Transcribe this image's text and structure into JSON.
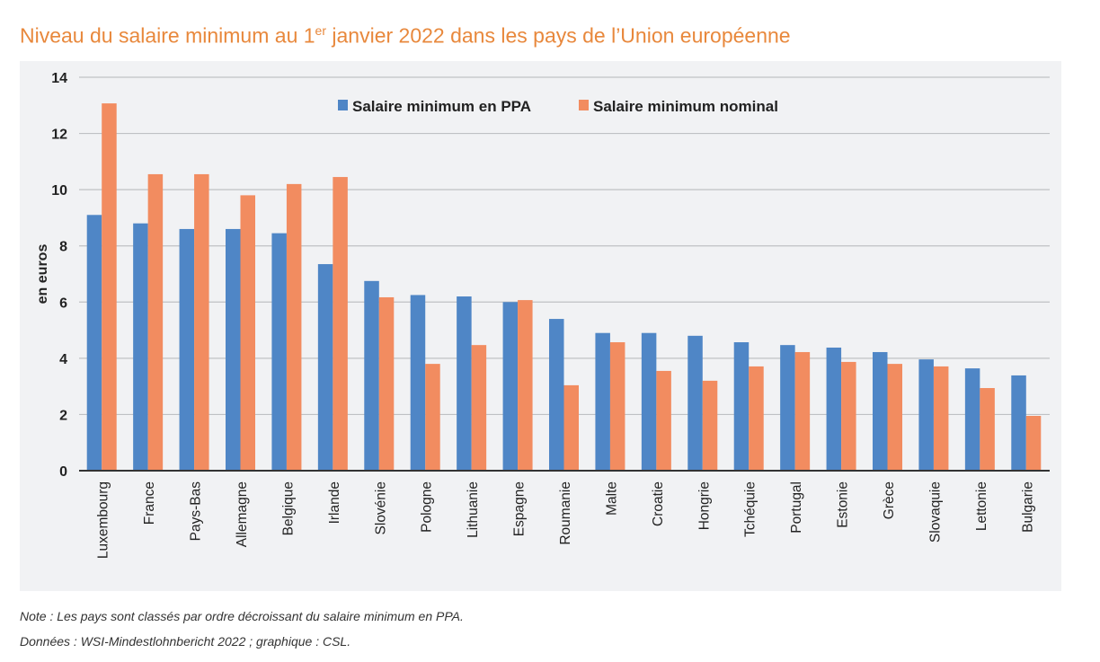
{
  "title": {
    "main": "Niveau du salaire minimum au 1",
    "sup": "er",
    "rest": " janvier 2022 dans les pays de l’Union européenne"
  },
  "notes": {
    "note": "Note : Les pays sont classés par ordre décroissant du salaire minimum en PPA.",
    "source": "Données : WSI-Mindestlohnbericht 2022 ; graphique : CSL."
  },
  "chart_data": {
    "type": "bar",
    "title": "Niveau du salaire minimum au 1er janvier 2022 dans les pays de l’Union européenne",
    "xlabel": "",
    "ylabel": "en euros",
    "ylim": [
      0,
      14
    ],
    "yticks": [
      0,
      2,
      4,
      6,
      8,
      10,
      12,
      14
    ],
    "grid": true,
    "legend_position": "top-center",
    "categories": [
      "Luxembourg",
      "France",
      "Pays-Bas",
      "Allemagne",
      "Belgique",
      "Irlande",
      "Slovénie",
      "Pologne",
      "Lithuanie",
      "Espagne",
      "Roumanie",
      "Malte",
      "Croatie",
      "Hongrie",
      "Tchéquie",
      "Portugal",
      "Estonie",
      "Grèce",
      "Slovaquie",
      "Lettonie",
      "Bulgarie"
    ],
    "series": [
      {
        "name": "Salaire minimum en PPA",
        "color": "#4f86c6",
        "values": [
          9.1,
          8.8,
          8.6,
          8.6,
          8.45,
          7.35,
          6.75,
          6.25,
          6.2,
          6.0,
          5.4,
          4.9,
          4.9,
          4.8,
          4.57,
          4.47,
          4.38,
          4.22,
          3.96,
          3.64,
          3.39
        ]
      },
      {
        "name": "Salaire minimum nominal",
        "color": "#f28c60",
        "values": [
          13.07,
          10.55,
          10.55,
          9.8,
          10.2,
          10.45,
          6.17,
          3.8,
          4.47,
          6.07,
          3.04,
          4.57,
          3.55,
          3.2,
          3.71,
          4.22,
          3.87,
          3.8,
          3.71,
          2.94,
          1.95
        ]
      }
    ],
    "notes": [
      "Note : Les pays sont classés par ordre décroissant du salaire minimum en PPA.",
      "Données : WSI-Mindestlohnbericht 2022 ; graphique : CSL."
    ]
  }
}
